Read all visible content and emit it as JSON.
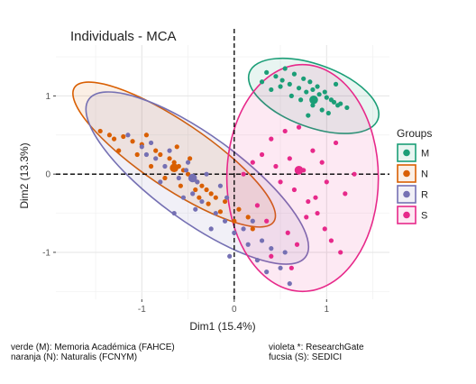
{
  "chart_data": {
    "type": "scatter",
    "title": "Individuals - MCA",
    "xlabel": "Dim1 (15.4%)",
    "ylabel": "Dim2 (13.3%)",
    "xlim": [
      -1.93,
      1.68
    ],
    "ylim": [
      -1.6,
      1.65
    ],
    "x_ticks": [
      -1,
      0,
      1
    ],
    "y_ticks": [
      -1,
      0,
      1
    ],
    "x_tick_labels": [
      "-1",
      "0",
      "1"
    ],
    "y_tick_labels": [
      "-1",
      "0",
      "1"
    ],
    "grid": true,
    "legend_position": "right",
    "legend_title": "Groups",
    "series": [
      {
        "name": "M",
        "color": "#1B9E77",
        "centroid": [
          0.86,
          0.95
        ],
        "ellipse": {
          "cx": 0.86,
          "cy": 1.0,
          "rx": 0.74,
          "ry": 0.4,
          "angle_deg": 20
        },
        "x": [
          0.35,
          0.45,
          0.52,
          0.6,
          0.7,
          0.78,
          0.85,
          0.92,
          1.0,
          1.08,
          1.15,
          1.22,
          0.55,
          0.65,
          0.75,
          0.82,
          0.9,
          0.98,
          1.05,
          1.12,
          0.62,
          0.72,
          0.85,
          0.95,
          1.02,
          0.3,
          0.4,
          0.5,
          0.8,
          1.1
        ],
        "y": [
          1.3,
          1.25,
          1.2,
          1.15,
          1.1,
          1.05,
          1.08,
          1.02,
          0.98,
          0.92,
          0.9,
          0.85,
          1.35,
          1.28,
          1.22,
          1.18,
          1.12,
          1.05,
          0.95,
          0.88,
          1.0,
          0.95,
          0.88,
          0.82,
          0.78,
          1.18,
          1.08,
          1.12,
          0.75,
          1.15
        ]
      },
      {
        "name": "N",
        "color": "#D95F02",
        "centroid": [
          -0.65,
          0.08
        ],
        "ellipse": {
          "cx": -0.65,
          "cy": 0.25,
          "rx": 1.3,
          "ry": 0.42,
          "angle_deg": 34
        },
        "x": [
          -1.45,
          -1.35,
          -1.3,
          -1.2,
          -1.1,
          -1.0,
          -0.95,
          -0.85,
          -0.8,
          -0.7,
          -0.65,
          -0.6,
          -0.55,
          -0.5,
          -0.45,
          -0.4,
          -0.35,
          -0.3,
          -0.25,
          -0.2,
          -0.1,
          0.05,
          0.15,
          -1.25,
          -1.05,
          -0.9,
          -0.75,
          -0.58,
          -0.42,
          -0.28,
          -0.15,
          0.0,
          0.2,
          -0.62,
          -0.48,
          -0.38
        ],
        "y": [
          0.55,
          0.5,
          0.45,
          0.48,
          0.42,
          0.38,
          0.5,
          0.3,
          0.25,
          0.2,
          0.15,
          0.1,
          0.05,
          0.0,
          -0.05,
          -0.1,
          -0.15,
          -0.2,
          -0.25,
          -0.3,
          -0.35,
          -0.45,
          -0.55,
          0.3,
          0.25,
          0.1,
          -0.05,
          -0.15,
          -0.2,
          -0.38,
          -0.48,
          -0.6,
          -0.7,
          0.35,
          0.2,
          -0.3
        ]
      },
      {
        "name": "R",
        "color": "#7570B3",
        "centroid": [
          -0.45,
          -0.05
        ],
        "ellipse": {
          "cx": -0.4,
          "cy": -0.05,
          "rx": 1.45,
          "ry": 0.55,
          "angle_deg": 36
        },
        "x": [
          -1.15,
          -1.0,
          -0.9,
          -0.85,
          -0.75,
          -0.7,
          -0.6,
          -0.5,
          -0.45,
          -0.4,
          -0.35,
          -0.3,
          -0.2,
          -0.15,
          -0.1,
          0.0,
          0.1,
          0.15,
          0.2,
          0.3,
          0.4,
          0.5,
          0.55,
          -0.95,
          -0.8,
          -0.65,
          -0.55,
          -0.25,
          -0.05,
          0.25,
          0.35,
          0.6,
          -0.52,
          -0.42,
          -0.08
        ],
        "y": [
          0.5,
          0.35,
          0.4,
          0.2,
          0.1,
          0.3,
          -0.05,
          0.15,
          -0.25,
          -0.1,
          -0.35,
          0.0,
          -0.5,
          -0.15,
          -0.6,
          -0.75,
          -0.7,
          -0.9,
          -0.6,
          -0.85,
          -0.95,
          -1.2,
          -1.0,
          0.25,
          -0.1,
          -0.5,
          -0.3,
          -0.7,
          -1.05,
          -1.1,
          -1.25,
          -1.4,
          0.05,
          -0.45,
          -0.3
        ]
      },
      {
        "name": "S",
        "color": "#E7298A",
        "centroid": [
          0.7,
          0.05
        ],
        "ellipse": {
          "cx": 0.74,
          "cy": -0.05,
          "rx": 0.82,
          "ry": 1.45,
          "angle_deg": 0
        },
        "x": [
          0.1,
          0.2,
          0.3,
          0.4,
          0.45,
          0.5,
          0.55,
          0.6,
          0.65,
          0.7,
          0.75,
          0.8,
          0.85,
          0.9,
          0.95,
          1.0,
          1.1,
          1.2,
          1.3,
          0.25,
          0.35,
          0.58,
          0.68,
          0.78,
          0.88,
          0.98,
          1.05,
          1.15,
          0.4,
          0.62
        ],
        "y": [
          0.0,
          0.15,
          0.25,
          0.45,
          0.1,
          -0.1,
          0.55,
          0.2,
          -0.2,
          0.6,
          0.05,
          -0.35,
          0.3,
          -0.5,
          0.15,
          -0.1,
          0.4,
          -0.25,
          0.0,
          -0.4,
          -0.6,
          -0.75,
          -0.9,
          -0.55,
          -0.3,
          -0.7,
          -0.85,
          -1.0,
          -1.05,
          -1.2
        ]
      }
    ]
  },
  "captions": {
    "left_line1": "verde (M): Memoria Académica (FAHCE)",
    "left_line2": "naranja (N): Naturalis (FCNYM)",
    "right_line1": "violeta *: ResearchGate",
    "right_line2": "fucsia (S): SEDICI"
  }
}
